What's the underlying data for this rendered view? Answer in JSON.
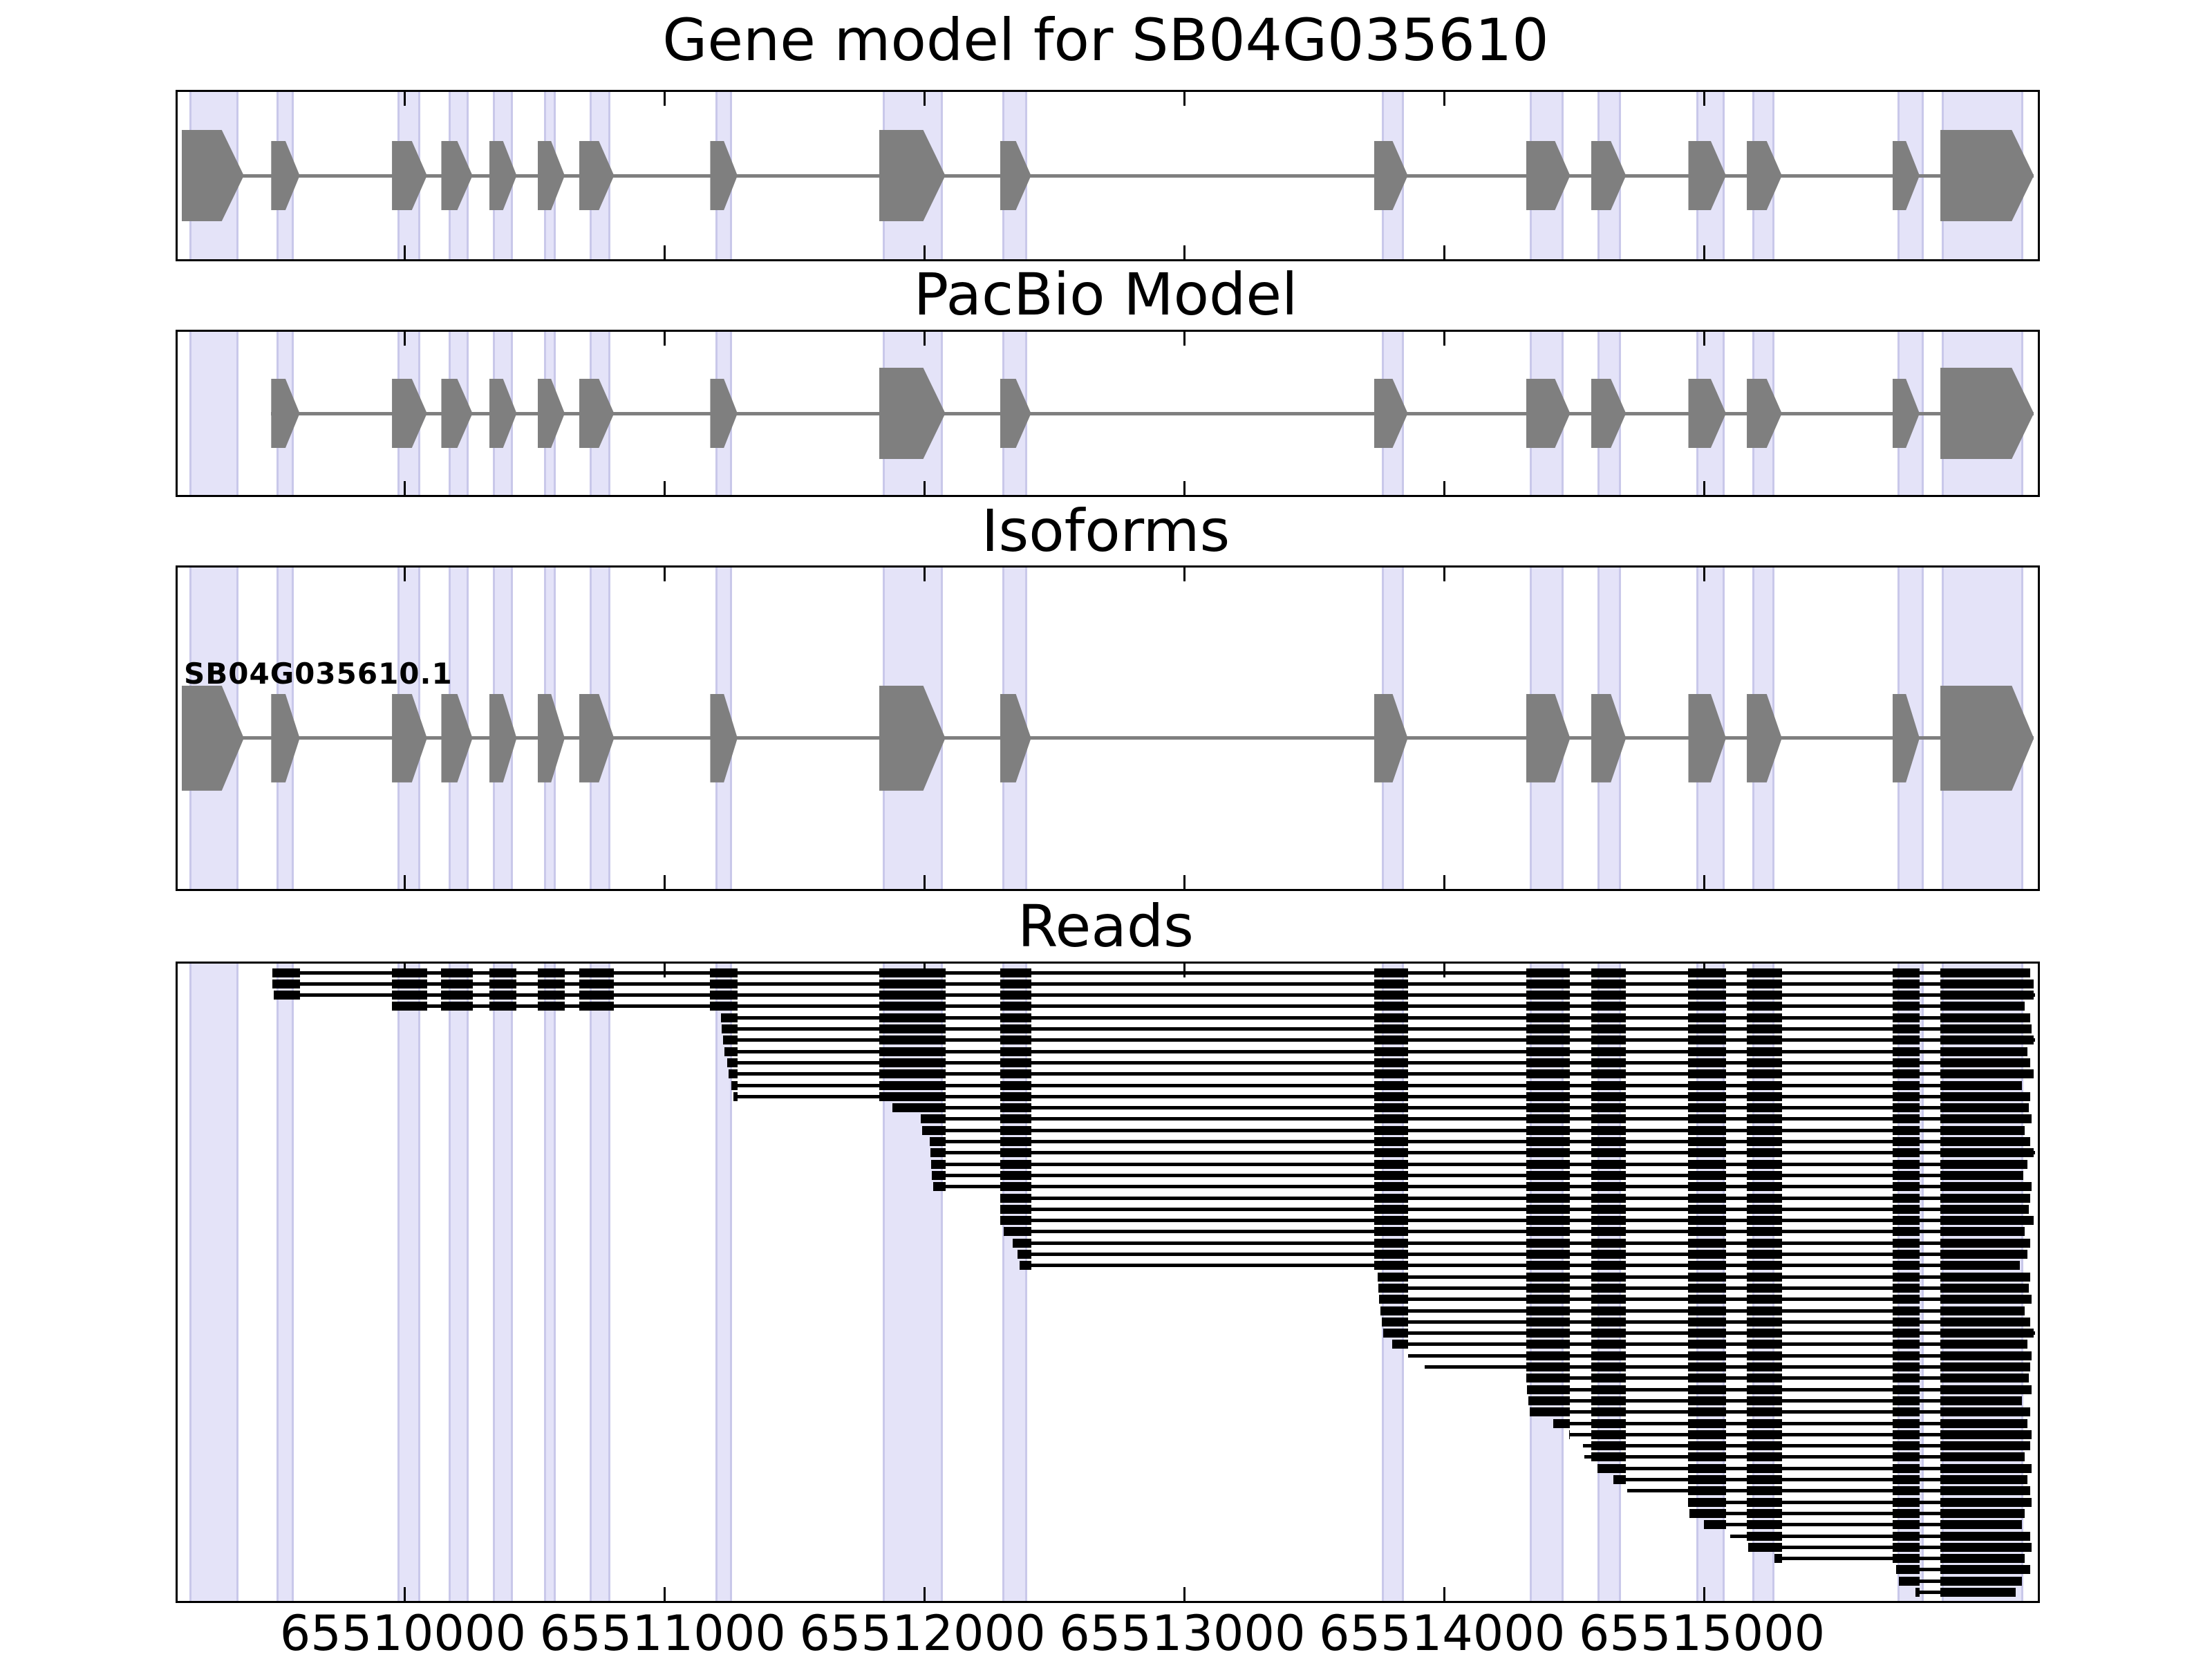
{
  "colors": {
    "exon_gray": "#7f7f7f",
    "intron_gray": "#7f7f7f",
    "read_black": "#000000",
    "band_fill": "#e4e3f8",
    "band_edge": "#c9c8ea",
    "panel_border": "#000000",
    "background": "#ffffff"
  },
  "chart_data": {
    "type": "gene-structure-tracks",
    "title": "Gene model for SB04G035610",
    "xlabel": "",
    "grid": false,
    "legend": false,
    "axis": {
      "xmin": 65509125,
      "xmax": 65516285,
      "tick_values": [
        65510000,
        65511000,
        65512000,
        65513000,
        65514000,
        65515000
      ],
      "tick_labels": [
        "65510000",
        "65511000",
        "65512000",
        "65513000",
        "65514000",
        "65515000"
      ]
    },
    "highlight_bands": [
      [
        65509170,
        65509360
      ],
      [
        65509505,
        65509572
      ],
      [
        65509970,
        65510060
      ],
      [
        65510168,
        65510245
      ],
      [
        65510338,
        65510415
      ],
      [
        65510535,
        65510580
      ],
      [
        65510710,
        65510790
      ],
      [
        65511195,
        65511260
      ],
      [
        65511840,
        65512070
      ],
      [
        65512300,
        65512395
      ],
      [
        65513760,
        65513845
      ],
      [
        65514330,
        65514460
      ],
      [
        65514590,
        65514680
      ],
      [
        65514970,
        65515080
      ],
      [
        65515185,
        65515270
      ],
      [
        65515745,
        65515845
      ],
      [
        65515915,
        65516230
      ]
    ],
    "exon_blocks": [
      {
        "start": 65509140,
        "end": 65509380,
        "size": "large"
      },
      {
        "start": 65509485,
        "end": 65509595,
        "size": "small"
      },
      {
        "start": 65509950,
        "end": 65510085,
        "size": "small"
      },
      {
        "start": 65510140,
        "end": 65510260,
        "size": "small"
      },
      {
        "start": 65510325,
        "end": 65510430,
        "size": "small"
      },
      {
        "start": 65510510,
        "end": 65510615,
        "size": "small"
      },
      {
        "start": 65510670,
        "end": 65510805,
        "size": "small"
      },
      {
        "start": 65511175,
        "end": 65511280,
        "size": "small"
      },
      {
        "start": 65511825,
        "end": 65512080,
        "size": "large"
      },
      {
        "start": 65512290,
        "end": 65512410,
        "size": "small"
      },
      {
        "start": 65513730,
        "end": 65513860,
        "size": "small"
      },
      {
        "start": 65514315,
        "end": 65514485,
        "size": "small"
      },
      {
        "start": 65514565,
        "end": 65514700,
        "size": "small"
      },
      {
        "start": 65514940,
        "end": 65515085,
        "size": "small"
      },
      {
        "start": 65515165,
        "end": 65515300,
        "size": "small"
      },
      {
        "start": 65515725,
        "end": 65515830,
        "size": "small"
      },
      {
        "start": 65515910,
        "end": 65516270,
        "size": "large"
      }
    ],
    "panels": [
      {
        "name": "gene_model",
        "title": "Gene model for SB04G035610",
        "type": "model",
        "exon_range": [
          0,
          16
        ]
      },
      {
        "name": "pacbio_model",
        "title": "PacBio Model",
        "type": "model",
        "exon_range": [
          1,
          16
        ]
      },
      {
        "name": "isoforms",
        "title": "Isoforms",
        "type": "model",
        "exon_range": [
          0,
          16
        ],
        "label": "SB04G035610.1"
      },
      {
        "name": "reads",
        "title": "Reads",
        "type": "reads"
      }
    ],
    "reads": [
      [
        65509490,
        65516255
      ],
      [
        65509490,
        65516268
      ],
      [
        65509495,
        65516275
      ],
      [
        65509950,
        65516235
      ],
      [
        65511215,
        65516255
      ],
      [
        65511220,
        65516262
      ],
      [
        65511225,
        65516275
      ],
      [
        65511230,
        65516245
      ],
      [
        65511240,
        65516255
      ],
      [
        65511245,
        65516268
      ],
      [
        65511255,
        65516225
      ],
      [
        65511265,
        65516255
      ],
      [
        65511875,
        65516250
      ],
      [
        65511985,
        65516262
      ],
      [
        65511990,
        65516235
      ],
      [
        65512020,
        65516255
      ],
      [
        65512022,
        65516275
      ],
      [
        65512025,
        65516245
      ],
      [
        65512028,
        65516230
      ],
      [
        65512032,
        65516262
      ],
      [
        65512290,
        65516255
      ],
      [
        65512290,
        65516250
      ],
      [
        65512292,
        65516268
      ],
      [
        65512305,
        65516235
      ],
      [
        65512340,
        65516255
      ],
      [
        65512358,
        65516245
      ],
      [
        65512365,
        65516215
      ],
      [
        65513745,
        65516255
      ],
      [
        65513748,
        65516250
      ],
      [
        65513750,
        65516262
      ],
      [
        65513755,
        65516235
      ],
      [
        65513760,
        65516255
      ],
      [
        65513765,
        65516275
      ],
      [
        65513800,
        65516245
      ],
      [
        65513860,
        65516262
      ],
      [
        65513925,
        65516255
      ],
      [
        65514315,
        65516250
      ],
      [
        65514320,
        65516262
      ],
      [
        65514325,
        65516225
      ],
      [
        65514330,
        65516255
      ],
      [
        65514420,
        65516245
      ],
      [
        65514480,
        65516262
      ],
      [
        65514535,
        65516255
      ],
      [
        65514540,
        65516235
      ],
      [
        65514590,
        65516262
      ],
      [
        65514650,
        65516245
      ],
      [
        65514705,
        65516255
      ],
      [
        65514940,
        65516262
      ],
      [
        65514945,
        65516235
      ],
      [
        65515000,
        65516225
      ],
      [
        65515100,
        65516255
      ],
      [
        65515170,
        65516262
      ],
      [
        65515270,
        65516235
      ],
      [
        65515740,
        65516255
      ],
      [
        65515750,
        65516225
      ],
      [
        65515815,
        65516200
      ]
    ]
  }
}
